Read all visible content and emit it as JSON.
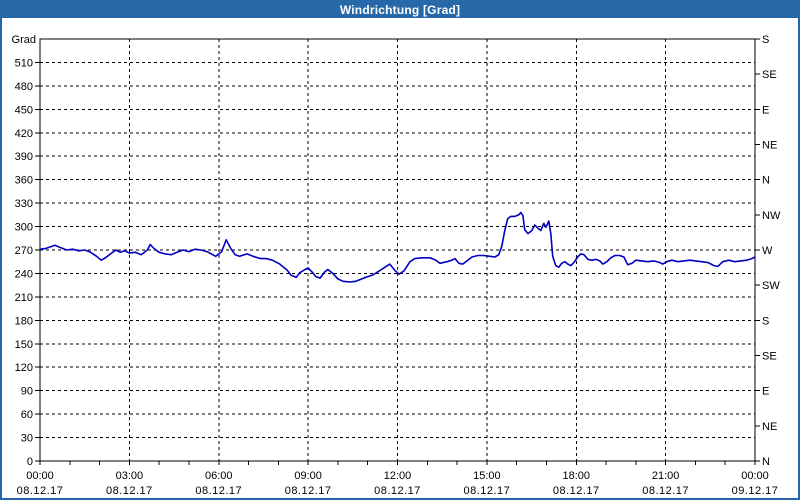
{
  "window": {
    "title": "Windrichtung [Grad]"
  },
  "colors": {
    "accent": "#2769A8",
    "bg": "#ffffff",
    "plot_frame": "#000000",
    "grid": "#000000",
    "text": "#000000",
    "series_line": "#0000C0"
  },
  "chart_data": {
    "type": "line",
    "title": "Windrichtung [Grad]",
    "ylabel_left": "Grad",
    "ylim": [
      0,
      540
    ],
    "y_left_tick_step": 30,
    "y_left_ticks": [
      0,
      30,
      60,
      90,
      120,
      150,
      180,
      210,
      240,
      270,
      300,
      330,
      360,
      390,
      420,
      450,
      480,
      510
    ],
    "y_right_ticks": [
      {
        "value": 0,
        "label": "N"
      },
      {
        "value": 45,
        "label": "NE"
      },
      {
        "value": 90,
        "label": "E"
      },
      {
        "value": 135,
        "label": "SE"
      },
      {
        "value": 180,
        "label": "S"
      },
      {
        "value": 225,
        "label": "SW"
      },
      {
        "value": 270,
        "label": "W"
      },
      {
        "value": 315,
        "label": "NW"
      },
      {
        "value": 360,
        "label": "N"
      },
      {
        "value": 405,
        "label": "NE"
      },
      {
        "value": 450,
        "label": "E"
      },
      {
        "value": 495,
        "label": "SE"
      },
      {
        "value": 540,
        "label": "S"
      }
    ],
    "xlim_hours": [
      0,
      24
    ],
    "x_minor_step_hours": 1,
    "x_major_step_hours": 3,
    "x_major_ticks": [
      {
        "hour": 0,
        "time": "00:00",
        "date": "08.12.17"
      },
      {
        "hour": 3,
        "time": "03:00",
        "date": "08.12.17"
      },
      {
        "hour": 6,
        "time": "06:00",
        "date": "08.12.17"
      },
      {
        "hour": 9,
        "time": "09:00",
        "date": "08.12.17"
      },
      {
        "hour": 12,
        "time": "12:00",
        "date": "08.12.17"
      },
      {
        "hour": 15,
        "time": "15:00",
        "date": "08.12.17"
      },
      {
        "hour": 18,
        "time": "18:00",
        "date": "08.12.17"
      },
      {
        "hour": 21,
        "time": "21:00",
        "date": "08.12.17"
      },
      {
        "hour": 24,
        "time": "00:00",
        "date": "09.12.17"
      }
    ],
    "grid": true,
    "grid_style": "dashed",
    "series": [
      {
        "name": "Windrichtung",
        "color": "#0000C0",
        "points": [
          [
            0.0,
            271
          ],
          [
            0.2,
            272
          ],
          [
            0.5,
            276
          ],
          [
            0.7,
            273
          ],
          [
            0.9,
            270
          ],
          [
            1.1,
            271
          ],
          [
            1.3,
            269
          ],
          [
            1.5,
            270
          ],
          [
            1.7,
            267
          ],
          [
            1.9,
            262
          ],
          [
            2.05,
            257
          ],
          [
            2.2,
            260
          ],
          [
            2.4,
            266
          ],
          [
            2.55,
            270
          ],
          [
            2.7,
            267
          ],
          [
            2.85,
            269
          ],
          [
            3.0,
            266
          ],
          [
            3.2,
            267
          ],
          [
            3.4,
            264
          ],
          [
            3.6,
            270
          ],
          [
            3.7,
            277
          ],
          [
            3.85,
            271
          ],
          [
            4.0,
            267
          ],
          [
            4.2,
            265
          ],
          [
            4.4,
            264
          ],
          [
            4.6,
            267
          ],
          [
            4.8,
            270
          ],
          [
            5.0,
            268
          ],
          [
            5.2,
            271
          ],
          [
            5.4,
            270
          ],
          [
            5.6,
            268
          ],
          [
            5.9,
            262
          ],
          [
            6.1,
            268
          ],
          [
            6.25,
            283
          ],
          [
            6.4,
            272
          ],
          [
            6.55,
            264
          ],
          [
            6.7,
            262
          ],
          [
            6.95,
            265
          ],
          [
            7.15,
            262
          ],
          [
            7.4,
            259
          ],
          [
            7.6,
            259
          ],
          [
            7.8,
            257
          ],
          [
            8.05,
            252
          ],
          [
            8.3,
            244
          ],
          [
            8.42,
            238
          ],
          [
            8.6,
            235
          ],
          [
            8.72,
            241
          ],
          [
            8.9,
            245
          ],
          [
            9.0,
            247
          ],
          [
            9.13,
            242
          ],
          [
            9.26,
            236
          ],
          [
            9.4,
            234
          ],
          [
            9.56,
            242
          ],
          [
            9.66,
            245
          ],
          [
            9.83,
            240
          ],
          [
            10.0,
            233
          ],
          [
            10.17,
            230
          ],
          [
            10.4,
            229
          ],
          [
            10.6,
            230
          ],
          [
            10.8,
            233
          ],
          [
            11.0,
            236
          ],
          [
            11.17,
            238
          ],
          [
            11.38,
            243
          ],
          [
            11.58,
            248
          ],
          [
            11.74,
            252
          ],
          [
            11.91,
            244
          ],
          [
            12.05,
            239
          ],
          [
            12.21,
            243
          ],
          [
            12.42,
            255
          ],
          [
            12.58,
            259
          ],
          [
            12.82,
            260
          ],
          [
            13.09,
            260
          ],
          [
            13.29,
            257
          ],
          [
            13.42,
            253
          ],
          [
            13.66,
            255
          ],
          [
            13.83,
            257
          ],
          [
            13.93,
            259
          ],
          [
            14.06,
            253
          ],
          [
            14.19,
            252
          ],
          [
            14.36,
            257
          ],
          [
            14.5,
            261
          ],
          [
            14.7,
            263
          ],
          [
            14.9,
            263
          ],
          [
            15.1,
            262
          ],
          [
            15.27,
            261
          ],
          [
            15.4,
            264
          ],
          [
            15.5,
            275
          ],
          [
            15.6,
            295
          ],
          [
            15.7,
            310
          ],
          [
            15.8,
            313
          ],
          [
            15.94,
            313
          ],
          [
            16.07,
            315
          ],
          [
            16.14,
            318
          ],
          [
            16.21,
            314
          ],
          [
            16.27,
            296
          ],
          [
            16.38,
            291
          ],
          [
            16.51,
            295
          ],
          [
            16.61,
            302
          ],
          [
            16.71,
            298
          ],
          [
            16.81,
            295
          ],
          [
            16.91,
            304
          ],
          [
            16.98,
            299
          ],
          [
            17.08,
            307
          ],
          [
            17.15,
            290
          ],
          [
            17.21,
            262
          ],
          [
            17.31,
            250
          ],
          [
            17.41,
            248
          ],
          [
            17.51,
            253
          ],
          [
            17.62,
            255
          ],
          [
            17.72,
            252
          ],
          [
            17.82,
            250
          ],
          [
            17.92,
            254
          ],
          [
            18.05,
            261
          ],
          [
            18.15,
            265
          ],
          [
            18.26,
            264
          ],
          [
            18.39,
            258
          ],
          [
            18.52,
            257
          ],
          [
            18.66,
            258
          ],
          [
            18.79,
            256
          ],
          [
            18.89,
            252
          ],
          [
            19.03,
            255
          ],
          [
            19.16,
            260
          ],
          [
            19.3,
            263
          ],
          [
            19.46,
            263
          ],
          [
            19.6,
            261
          ],
          [
            19.73,
            251
          ],
          [
            19.87,
            253
          ],
          [
            20.0,
            257
          ],
          [
            20.2,
            256
          ],
          [
            20.4,
            255
          ],
          [
            20.6,
            256
          ],
          [
            20.8,
            254
          ],
          [
            20.9,
            252
          ],
          [
            21.04,
            255
          ],
          [
            21.21,
            257
          ],
          [
            21.41,
            255
          ],
          [
            21.61,
            256
          ],
          [
            21.81,
            257
          ],
          [
            22.01,
            256
          ],
          [
            22.21,
            255
          ],
          [
            22.42,
            254
          ],
          [
            22.62,
            250
          ],
          [
            22.75,
            249
          ],
          [
            22.92,
            255
          ],
          [
            23.12,
            257
          ],
          [
            23.32,
            255
          ],
          [
            23.52,
            256
          ],
          [
            23.72,
            257
          ],
          [
            23.89,
            259
          ],
          [
            24.0,
            261
          ]
        ]
      }
    ]
  }
}
